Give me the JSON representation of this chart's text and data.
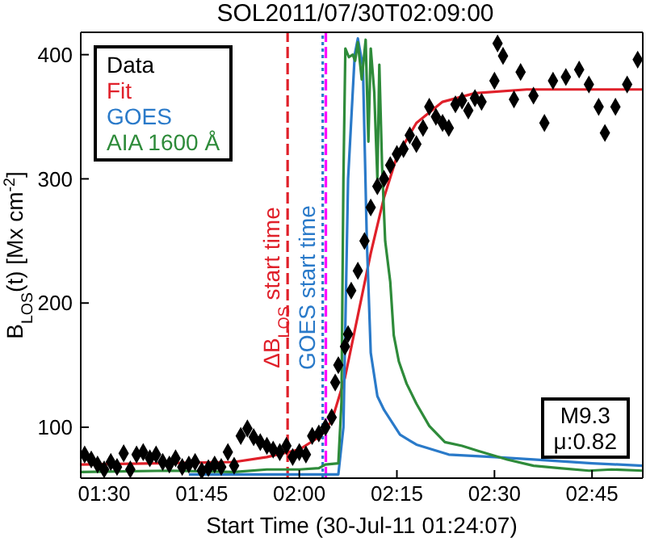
{
  "chart_data": {
    "type": "line",
    "title": "SOL2011/07/30T02:09:00",
    "xlabel": "Start Time (30-Jul-11 01:24:07)",
    "ylabel": "B$_{LOS}$(t) [Mx cm$^{-2}$]",
    "xlim": [
      1.44,
      2.88
    ],
    "ylim": [
      59,
      418
    ],
    "xticks": [
      {
        "value": 1.5,
        "label": "01:30"
      },
      {
        "value": 1.75,
        "label": "01:45"
      },
      {
        "value": 2.0,
        "label": "02:00"
      },
      {
        "value": 2.25,
        "label": "02:15"
      },
      {
        "value": 2.5,
        "label": "02:30"
      },
      {
        "value": 2.75,
        "label": "02:45"
      }
    ],
    "yticks": [
      100,
      200,
      300,
      400
    ],
    "grid": false,
    "legend": "top left",
    "annotations": [
      "M9.3",
      "μ:0.82"
    ],
    "ref_lines": [
      {
        "axis": "x",
        "value": 1.97,
        "label": "ΔB$_{LOS}$ start time",
        "color": "#e0202a",
        "line_style": "dashed"
      },
      {
        "axis": "x",
        "value": 2.06,
        "label": "GOES start time",
        "color": "#2a7ac9",
        "line_style": "dotted"
      },
      {
        "axis": "x",
        "value": 2.068,
        "color": "#ff00ff",
        "line_style": "dashed"
      }
    ],
    "series": [
      {
        "name": "Data",
        "type": "scatter",
        "marker": "diamond",
        "color": "#000000",
        "x": [
          1.45,
          1.467,
          1.483,
          1.5,
          1.517,
          1.533,
          1.55,
          1.567,
          1.583,
          1.6,
          1.617,
          1.633,
          1.65,
          1.667,
          1.683,
          1.7,
          1.717,
          1.733,
          1.75,
          1.767,
          1.783,
          1.8,
          1.817,
          1.833,
          1.85,
          1.867,
          1.883,
          1.9,
          1.917,
          1.933,
          1.95,
          1.967,
          1.983,
          2.0,
          2.017,
          2.033,
          2.05,
          2.067,
          2.083,
          2.092,
          2.1,
          2.117,
          2.125,
          2.133,
          2.15,
          2.167,
          2.183,
          2.2,
          2.217,
          2.233,
          2.25,
          2.267,
          2.283,
          2.3,
          2.317,
          2.333,
          2.35,
          2.367,
          2.383,
          2.4,
          2.417,
          2.433,
          2.45,
          2.467,
          2.5,
          2.508,
          2.522,
          2.55,
          2.567,
          2.6,
          2.628,
          2.65,
          2.683,
          2.717,
          2.742,
          2.767,
          2.783,
          2.81,
          2.84,
          2.867
        ],
        "values": [
          78,
          74,
          70,
          66,
          72,
          68,
          79,
          66,
          78,
          80,
          75,
          78,
          72,
          70,
          75,
          68,
          70,
          72,
          65,
          67,
          70,
          68,
          80,
          69,
          93,
          99,
          92,
          88,
          85,
          82,
          80,
          85,
          76,
          80,
          78,
          93,
          95,
          100,
          108,
          136,
          150,
          165,
          175,
          210,
          226,
          250,
          277,
          294,
          300,
          311,
          320,
          324,
          335,
          328,
          341,
          358,
          350,
          345,
          341,
          360,
          363,
          355,
          365,
          362,
          379,
          409,
          399,
          364,
          386,
          367,
          345,
          379,
          382,
          388,
          376,
          358,
          337,
          358,
          376,
          396
        ]
      },
      {
        "name": "Fit",
        "color": "#e0202a",
        "x": [
          1.44,
          1.833,
          1.917,
          2.0,
          2.05,
          2.083,
          2.117,
          2.15,
          2.183,
          2.217,
          2.25,
          2.3,
          2.367,
          2.45,
          2.583,
          2.88
        ],
        "values": [
          70,
          72,
          76,
          82,
          92,
          105,
          140,
          190,
          240,
          285,
          318,
          345,
          362,
          369,
          372,
          372
        ]
      },
      {
        "name": "GOES",
        "color": "#2a7ac9",
        "x": [
          1.717,
          2.1,
          2.113,
          2.125,
          2.142,
          2.15,
          2.163,
          2.173,
          2.183,
          2.2,
          2.217,
          2.258,
          2.3,
          2.383,
          2.5,
          2.6,
          2.75,
          2.88
        ],
        "values": [
          62,
          62,
          100,
          300,
          400,
          413,
          390,
          250,
          160,
          125,
          114,
          94,
          86,
          78,
          76,
          74,
          71,
          69
        ]
      },
      {
        "name": "AIA 1600 Å",
        "color": "#2e8b3a",
        "x": [
          1.44,
          1.667,
          1.833,
          1.917,
          2.0,
          2.05,
          2.067,
          2.1,
          2.108,
          2.113,
          2.118,
          2.127,
          2.137,
          2.143,
          2.15,
          2.16,
          2.17,
          2.177,
          2.183,
          2.192,
          2.2,
          2.205,
          2.212,
          2.22,
          2.233,
          2.242,
          2.255,
          2.275,
          2.3,
          2.333,
          2.373,
          2.417,
          2.458,
          2.533,
          2.6,
          2.667,
          2.742,
          2.8,
          2.88
        ],
        "values": [
          64,
          65,
          64,
          66,
          66,
          67,
          70,
          71,
          120,
          300,
          405,
          398,
          400,
          395,
          410,
          380,
          412,
          330,
          405,
          370,
          300,
          392,
          311,
          250,
          217,
          174,
          153,
          135,
          119,
          101,
          88,
          85,
          81,
          74,
          69,
          67,
          65,
          66,
          65
        ]
      }
    ]
  }
}
